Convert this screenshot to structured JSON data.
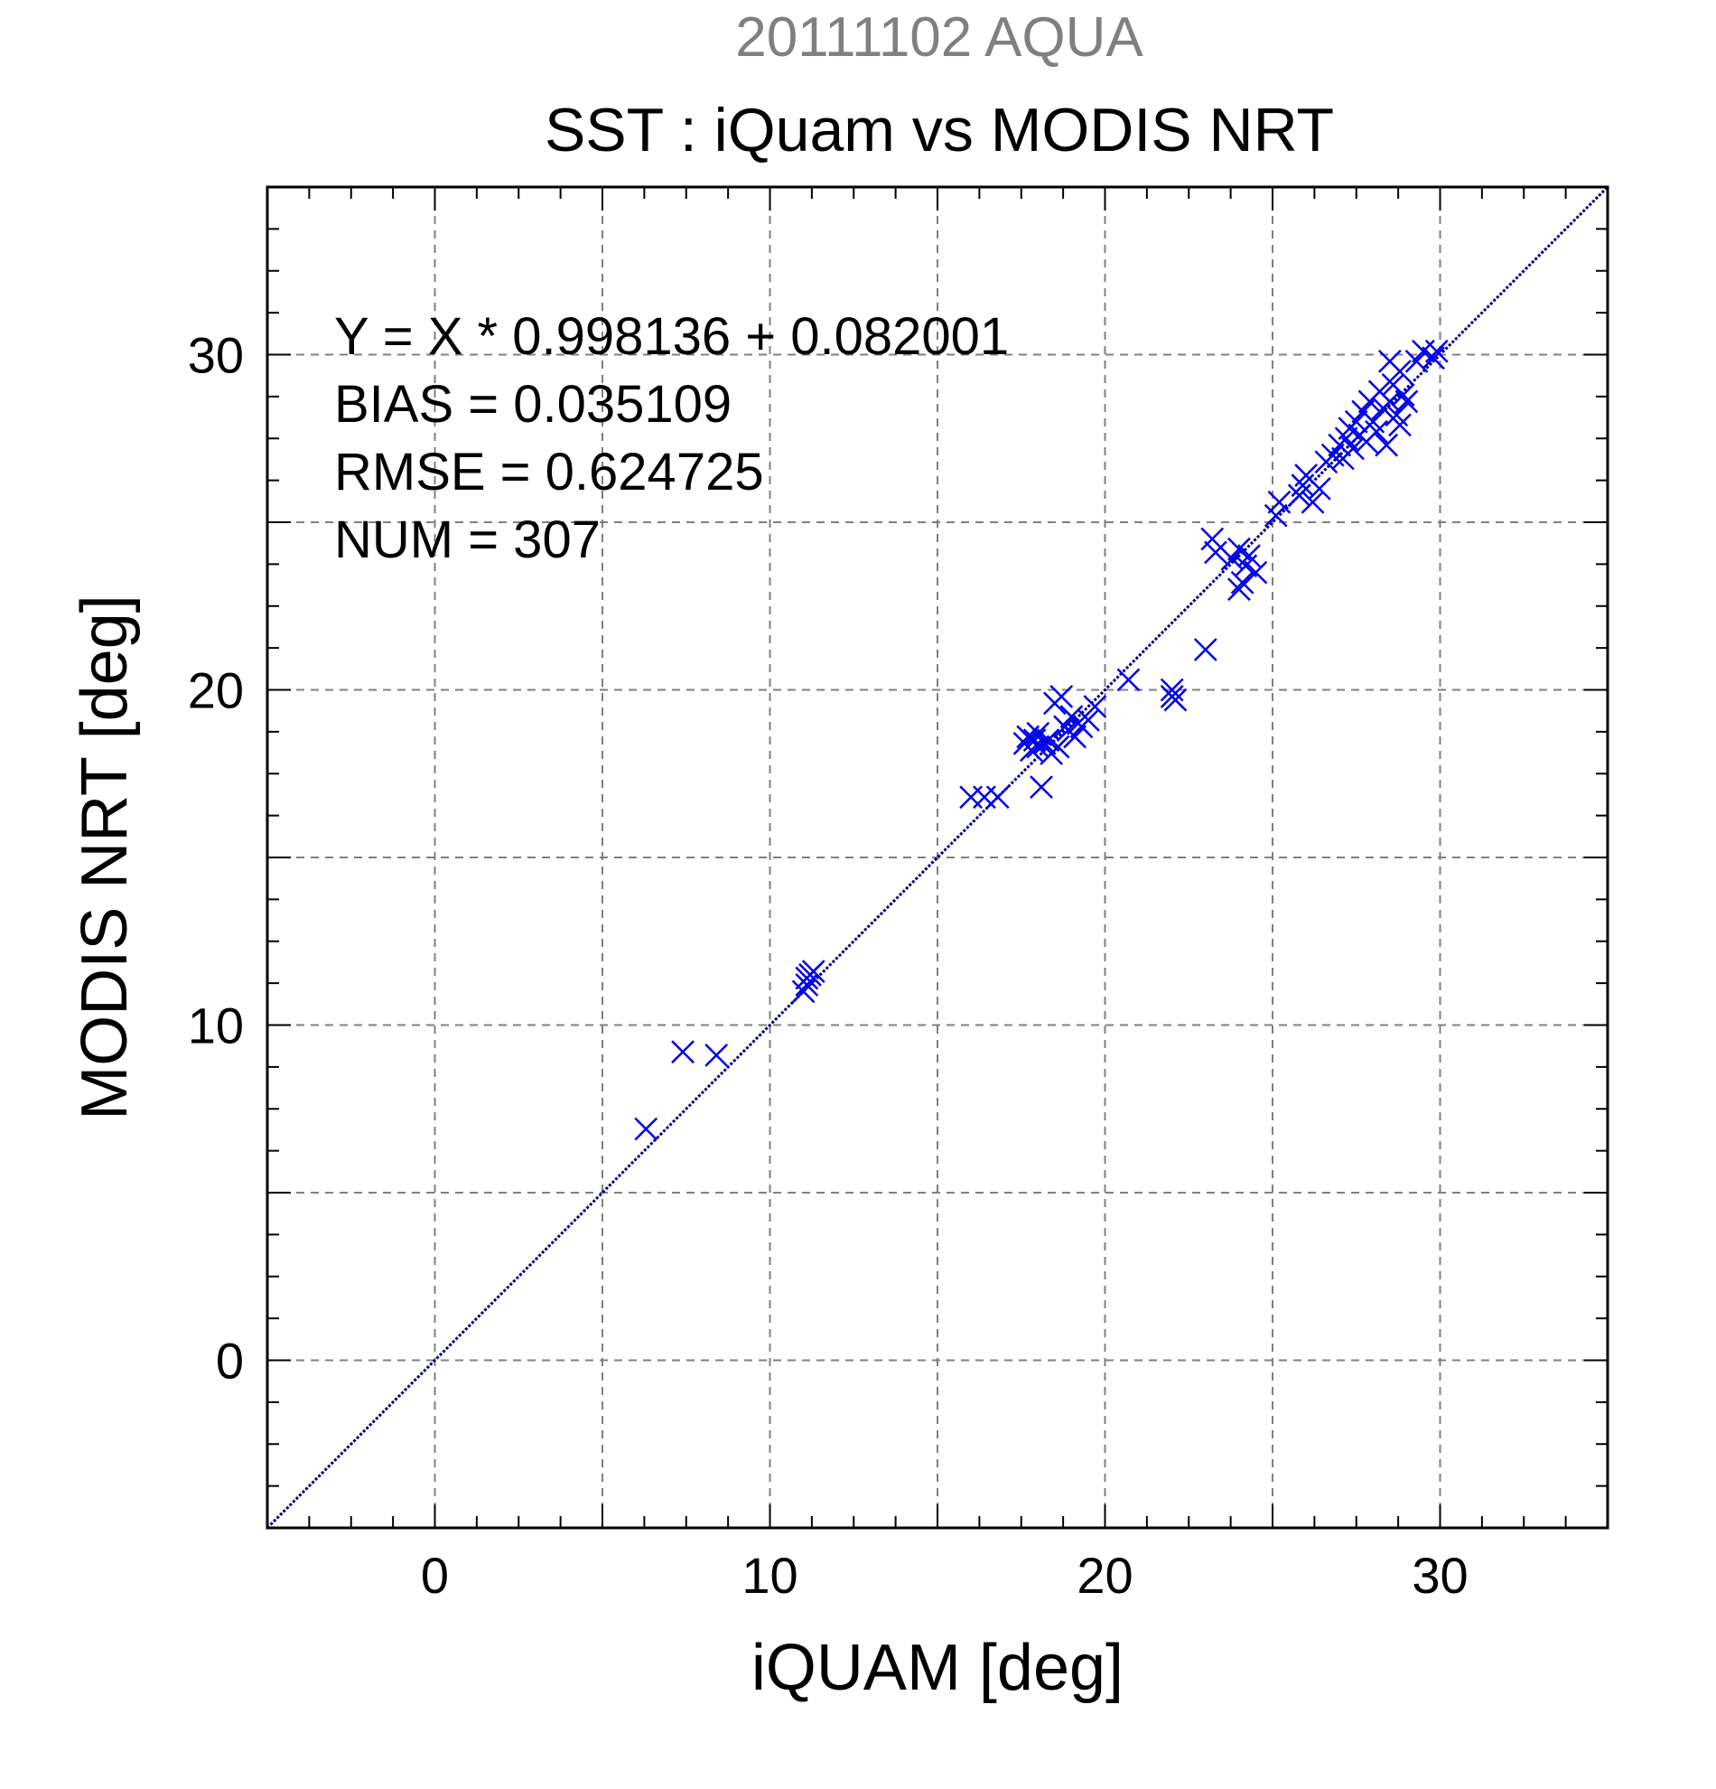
{
  "chart_data": {
    "type": "scatter",
    "supertitle": "20111102 AQUA",
    "title": "SST : iQuam vs MODIS NRT",
    "xlabel": "iQUAM [deg]",
    "ylabel": "MODIS NRT [deg]",
    "xlim": [
      -5,
      35
    ],
    "ylim": [
      -5,
      35
    ],
    "xticks": [
      0,
      10,
      20,
      30
    ],
    "yticks": [
      0,
      10,
      20,
      30
    ],
    "grid_values": [
      0,
      5,
      10,
      15,
      20,
      25,
      30
    ],
    "grid": true,
    "stats": {
      "line1": "Y = X * 0.998136 + 0.082001",
      "line2": "BIAS = 0.035109",
      "line3": "RMSE = 0.624725",
      "line4": "NUM = 307"
    },
    "reference_line": {
      "slope": 1,
      "intercept": 0
    },
    "colors": {
      "points": "#0000ee",
      "line": "#000080",
      "supertitle": "#808080",
      "grid": "#808080"
    },
    "marker": "x",
    "series": [
      {
        "points": [
          [
            6.3,
            6.9
          ],
          [
            7.4,
            9.2
          ],
          [
            8.4,
            9.1
          ],
          [
            11.0,
            11.0
          ],
          [
            11.1,
            11.4
          ],
          [
            11.2,
            11.5
          ],
          [
            11.3,
            11.6
          ],
          [
            11.1,
            11.2
          ],
          [
            16.0,
            16.8
          ],
          [
            16.4,
            16.8
          ],
          [
            16.8,
            16.8
          ],
          [
            17.6,
            18.4
          ],
          [
            17.7,
            18.6
          ],
          [
            17.8,
            18.2
          ],
          [
            17.9,
            18.5
          ],
          [
            18.0,
            18.3
          ],
          [
            18.0,
            18.7
          ],
          [
            18.1,
            17.1
          ],
          [
            18.2,
            18.4
          ],
          [
            18.3,
            18.5
          ],
          [
            18.4,
            18.1
          ],
          [
            18.5,
            19.6
          ],
          [
            18.6,
            18.3
          ],
          [
            18.7,
            19.8
          ],
          [
            18.8,
            18.9
          ],
          [
            18.9,
            18.8
          ],
          [
            19.0,
            19.2
          ],
          [
            19.1,
            18.6
          ],
          [
            19.2,
            19.0
          ],
          [
            19.3,
            18.9
          ],
          [
            19.5,
            19.1
          ],
          [
            19.7,
            19.5
          ],
          [
            20.7,
            20.3
          ],
          [
            22.0,
            19.8
          ],
          [
            22.1,
            19.7
          ],
          [
            22.0,
            20.0
          ],
          [
            23.0,
            21.2
          ],
          [
            23.2,
            24.5
          ],
          [
            23.3,
            24.1
          ],
          [
            23.8,
            23.9
          ],
          [
            24.0,
            24.2
          ],
          [
            24.1,
            23.2
          ],
          [
            24.2,
            23.7
          ],
          [
            24.3,
            24.0
          ],
          [
            24.5,
            23.5
          ],
          [
            24.0,
            23.0
          ],
          [
            25.1,
            25.2
          ],
          [
            25.2,
            25.6
          ],
          [
            25.8,
            25.8
          ],
          [
            25.9,
            26.1
          ],
          [
            26.0,
            26.4
          ],
          [
            26.2,
            25.6
          ],
          [
            26.4,
            26.0
          ],
          [
            26.6,
            26.8
          ],
          [
            26.8,
            27.0
          ],
          [
            27.0,
            27.3
          ],
          [
            27.1,
            26.9
          ],
          [
            27.2,
            27.5
          ],
          [
            27.3,
            27.8
          ],
          [
            27.4,
            27.2
          ],
          [
            27.5,
            28.0
          ],
          [
            27.6,
            27.6
          ],
          [
            27.7,
            28.3
          ],
          [
            27.8,
            27.4
          ],
          [
            27.9,
            28.6
          ],
          [
            28.0,
            28.0
          ],
          [
            28.1,
            27.7
          ],
          [
            28.2,
            28.9
          ],
          [
            28.3,
            28.4
          ],
          [
            28.4,
            27.3
          ],
          [
            28.5,
            28.6
          ],
          [
            28.6,
            29.1
          ],
          [
            28.7,
            28.2
          ],
          [
            28.8,
            29.5
          ],
          [
            28.9,
            28.8
          ],
          [
            29.0,
            28.6
          ],
          [
            28.5,
            29.8
          ],
          [
            28.8,
            27.9
          ],
          [
            29.3,
            29.8
          ],
          [
            29.5,
            30.1
          ],
          [
            29.8,
            29.9
          ],
          [
            29.9,
            30.1
          ]
        ]
      }
    ]
  }
}
